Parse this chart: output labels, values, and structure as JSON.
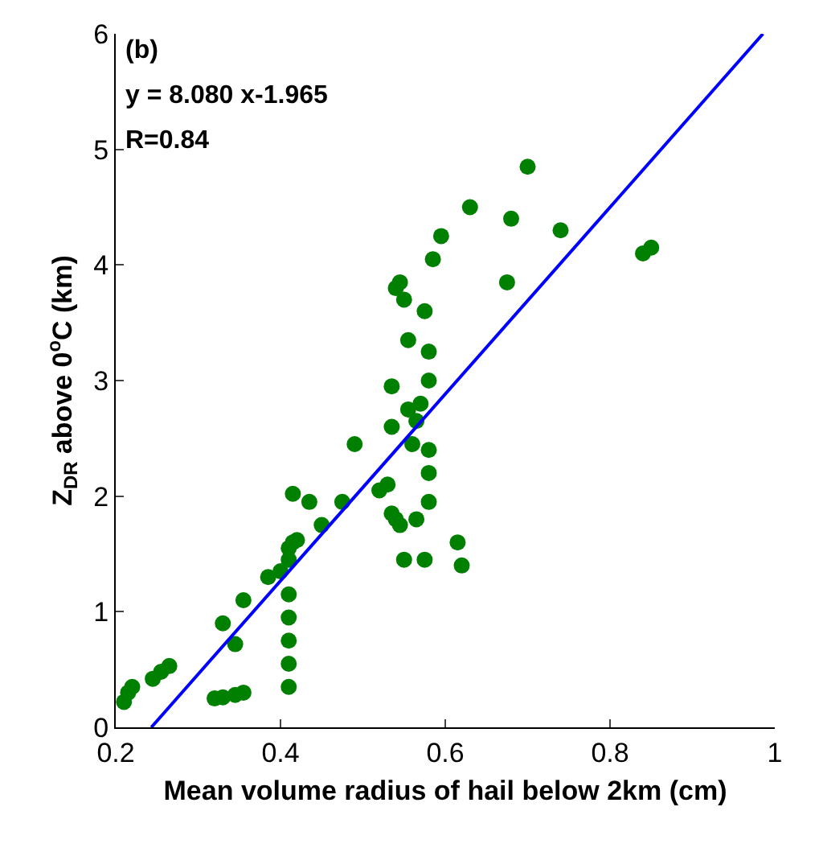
{
  "chart_data": {
    "type": "scatter",
    "xlabel": "Mean volume radius of hail below 2km (cm)",
    "ylabel": "Z$_{DR}$ above 0$^{o}$C (km)",
    "annotations": [
      "(b)",
      "y = 8.080 x-1.965",
      "R=0.84"
    ],
    "xlim": [
      0.2,
      1
    ],
    "xticks": [
      0.2,
      0.4,
      0.6,
      0.8,
      1
    ],
    "ylim": [
      0,
      6
    ],
    "yticks": [
      0,
      1,
      2,
      3,
      4,
      5,
      6
    ],
    "marker": "circle",
    "series": [
      {
        "color": "#008000",
        "x": [
          0.21,
          0.215,
          0.22,
          0.245,
          0.255,
          0.265,
          0.32,
          0.33,
          0.345,
          0.355,
          0.33,
          0.345,
          0.355,
          0.385,
          0.4,
          0.41,
          0.41,
          0.41,
          0.41,
          0.41,
          0.41,
          0.41,
          0.415,
          0.42,
          0.415,
          0.435,
          0.45,
          0.475,
          0.49,
          0.52,
          0.53,
          0.535,
          0.54,
          0.545,
          0.535,
          0.535,
          0.54,
          0.545,
          0.55,
          0.55,
          0.555,
          0.555,
          0.56,
          0.565,
          0.565,
          0.57,
          0.575,
          0.575,
          0.58,
          0.58,
          0.58,
          0.58,
          0.58,
          0.585,
          0.595,
          0.615,
          0.62,
          0.63,
          0.675,
          0.68,
          0.7,
          0.74,
          0.84,
          0.85
        ],
        "values": [
          0.22,
          0.3,
          0.35,
          0.42,
          0.48,
          0.53,
          0.25,
          0.26,
          0.28,
          0.3,
          0.9,
          0.72,
          1.1,
          1.3,
          1.35,
          0.35,
          0.55,
          0.75,
          0.95,
          1.15,
          1.45,
          1.55,
          1.6,
          1.62,
          2.02,
          1.95,
          1.75,
          1.95,
          2.45,
          2.05,
          2.1,
          1.85,
          1.8,
          1.75,
          2.95,
          2.6,
          3.8,
          3.85,
          3.7,
          1.45,
          3.35,
          2.75,
          2.45,
          2.65,
          1.8,
          2.8,
          1.45,
          3.6,
          3.25,
          3.0,
          2.4,
          2.2,
          1.95,
          4.05,
          4.25,
          1.6,
          1.4,
          4.5,
          3.85,
          4.4,
          4.85,
          4.3,
          4.1,
          4.15
        ]
      },
      {
        "type": "line",
        "color": "#0000ff",
        "marker": "none",
        "line_style": "solid",
        "x": [
          0.2432,
          0.9857
        ],
        "values": [
          0,
          6
        ]
      }
    ]
  }
}
